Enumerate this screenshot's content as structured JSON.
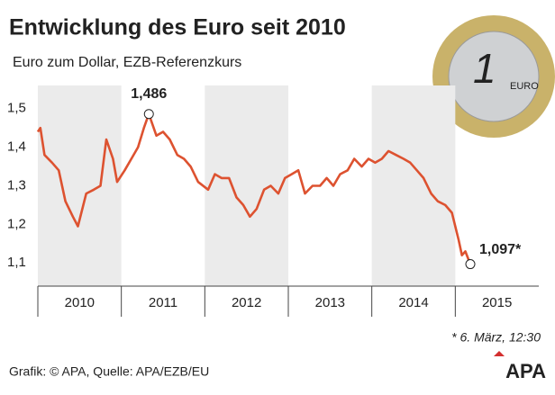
{
  "chart_data": {
    "type": "line",
    "title": "Entwicklung des Euro seit 2010",
    "subtitle": "Euro zum Dollar, EZB-Referenzkurs",
    "footnote": "* 6. März, 12:30",
    "source": "Grafik: © APA, Quelle: APA/EZB/EU",
    "logo": "APA",
    "coin": [
      "1",
      "EURO"
    ],
    "color": "#dd5230",
    "categories": [
      "2010",
      "2011",
      "2012",
      "2013",
      "2014",
      "2015"
    ],
    "xlim": [
      2010,
      2016
    ],
    "ylim": [
      1.04,
      1.56
    ],
    "yticks": [
      {
        "value": 1.1,
        "label": "1,1"
      },
      {
        "value": 1.2,
        "label": "1,2"
      },
      {
        "value": 1.3,
        "label": "1,3"
      },
      {
        "value": 1.4,
        "label": "1,4"
      },
      {
        "value": 1.5,
        "label": "1,5"
      }
    ],
    "x": [
      2010.0,
      2010.03,
      2010.08,
      2010.17,
      2010.25,
      2010.33,
      2010.42,
      2010.48,
      2010.58,
      2010.67,
      2010.75,
      2010.82,
      2010.9,
      2010.95,
      2011.04,
      2011.12,
      2011.2,
      2011.27,
      2011.33,
      2011.42,
      2011.5,
      2011.58,
      2011.67,
      2011.75,
      2011.83,
      2011.92,
      2012.04,
      2012.12,
      2012.2,
      2012.29,
      2012.38,
      2012.46,
      2012.54,
      2012.62,
      2012.71,
      2012.79,
      2012.88,
      2012.96,
      2013.04,
      2013.12,
      2013.2,
      2013.29,
      2013.38,
      2013.46,
      2013.54,
      2013.62,
      2013.71,
      2013.79,
      2013.88,
      2013.96,
      2014.04,
      2014.12,
      2014.2,
      2014.29,
      2014.38,
      2014.46,
      2014.54,
      2014.62,
      2014.71,
      2014.79,
      2014.88,
      2014.96,
      2015.04,
      2015.08,
      2015.12,
      2015.18
    ],
    "values": [
      1.44,
      1.45,
      1.38,
      1.36,
      1.34,
      1.26,
      1.22,
      1.195,
      1.28,
      1.29,
      1.3,
      1.42,
      1.37,
      1.31,
      1.34,
      1.37,
      1.4,
      1.45,
      1.486,
      1.43,
      1.44,
      1.42,
      1.38,
      1.37,
      1.35,
      1.31,
      1.29,
      1.33,
      1.32,
      1.32,
      1.27,
      1.25,
      1.22,
      1.24,
      1.29,
      1.3,
      1.28,
      1.32,
      1.33,
      1.34,
      1.28,
      1.3,
      1.3,
      1.32,
      1.3,
      1.33,
      1.34,
      1.37,
      1.35,
      1.37,
      1.36,
      1.37,
      1.39,
      1.38,
      1.37,
      1.36,
      1.34,
      1.32,
      1.28,
      1.26,
      1.25,
      1.23,
      1.16,
      1.12,
      1.13,
      1.097
    ],
    "highlights": [
      {
        "x": 2011.33,
        "value": 1.486,
        "label": "1,486"
      },
      {
        "x": 2015.18,
        "value": 1.097,
        "label": "1,097*"
      }
    ]
  }
}
